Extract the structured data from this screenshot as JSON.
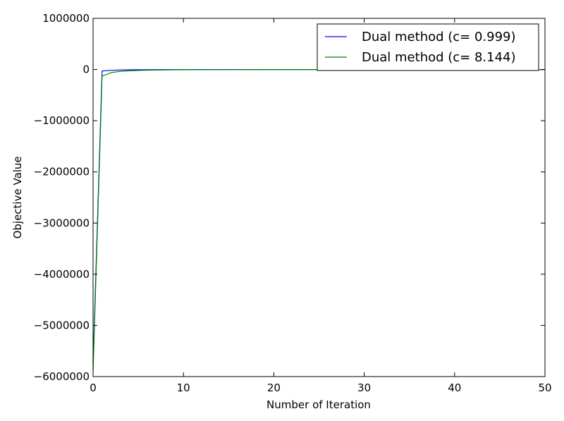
{
  "chart_data": {
    "type": "line",
    "title": "",
    "xlabel": "Number of Iteration",
    "ylabel": "Objective Value",
    "xlim": [
      0,
      50
    ],
    "ylim": [
      -6000000,
      1000000
    ],
    "xticks": [
      0,
      10,
      20,
      30,
      40,
      50
    ],
    "xtick_labels": [
      "0",
      "10",
      "20",
      "30",
      "40",
      "50"
    ],
    "yticks": [
      1000000,
      0,
      -1000000,
      -2000000,
      -3000000,
      -4000000,
      -5000000,
      -6000000
    ],
    "ytick_labels": [
      "1000000",
      "0",
      "−1000000",
      "−2000000",
      "−3000000",
      "−4000000",
      "−5000000",
      "−6000000"
    ],
    "grid": false,
    "legend_position": "top-right",
    "series": [
      {
        "name": "Dual method (c= 0.999)",
        "color": "#0000ff",
        "x": [
          0,
          1,
          2,
          3,
          4,
          5,
          6,
          8,
          10,
          15,
          20,
          30,
          40,
          50
        ],
        "y": [
          -5750000,
          -30000,
          -15000,
          -9000,
          -6000,
          -4000,
          -3000,
          -2000,
          -1500,
          -1000,
          -600,
          -300,
          -150,
          -100
        ]
      },
      {
        "name": "Dual method (c= 8.144)",
        "color": "#008000",
        "x": [
          0,
          1,
          2,
          3,
          4,
          5,
          6,
          8,
          10,
          12,
          15,
          20,
          30,
          40,
          50
        ],
        "y": [
          -5900000,
          -130000,
          -60000,
          -35000,
          -25000,
          -18000,
          -13000,
          -8000,
          -5000,
          -3500,
          -2000,
          -1000,
          -500,
          -250,
          -150
        ]
      }
    ]
  }
}
